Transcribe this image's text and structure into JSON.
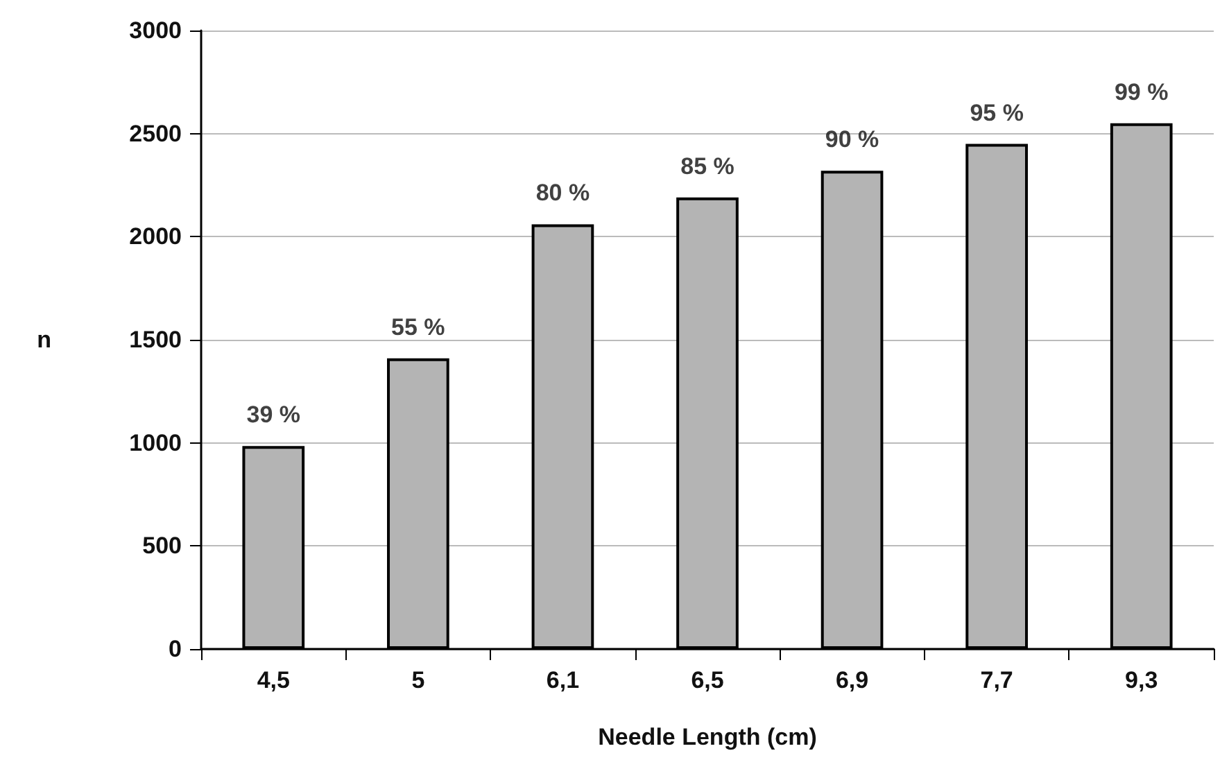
{
  "chart_data": {
    "type": "bar",
    "xlabel": "Needle Length (cm)",
    "ylabel": "n",
    "categories": [
      "4,5",
      "5",
      "6,1",
      "6,5",
      "6,9",
      "7,7",
      "9,3"
    ],
    "values": [
      985,
      1410,
      2060,
      2190,
      2320,
      2450,
      2550
    ],
    "annotations": [
      {
        "text": "39 %",
        "x": "4,5",
        "y": 985
      },
      {
        "text": "55 %",
        "x": "5",
        "y": 1410
      },
      {
        "text": "80 %",
        "x": "6,1",
        "y": 2060
      },
      {
        "text": "85 %",
        "x": "6,5",
        "y": 2190
      },
      {
        "text": "90 %",
        "x": "6,9",
        "y": 2320
      },
      {
        "text": "95 %",
        "x": "7,7",
        "y": 2450
      },
      {
        "text": "99 %",
        "x": "9,3",
        "y": 2550
      }
    ],
    "color": "#b4b4b4",
    "ylim": [
      0,
      3000
    ],
    "yticks": [
      0,
      500,
      1000,
      1500,
      2000,
      2500,
      3000
    ],
    "grid": "y"
  }
}
